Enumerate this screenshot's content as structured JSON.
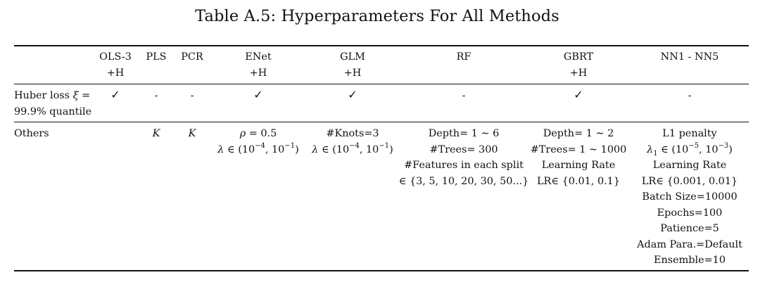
{
  "caption": "Table A.5: Hyperparameters For All Methods",
  "columns": [
    {
      "key": "ols",
      "line1": "OLS-3",
      "line2": "+H"
    },
    {
      "key": "pls",
      "line1": "PLS",
      "line2": ""
    },
    {
      "key": "pcr",
      "line1": "PCR",
      "line2": ""
    },
    {
      "key": "enet",
      "line1": "ENet",
      "line2": "+H"
    },
    {
      "key": "glm",
      "line1": "GLM",
      "line2": "+H"
    },
    {
      "key": "rf",
      "line1": "RF",
      "line2": ""
    },
    {
      "key": "gbrt",
      "line1": "GBRT",
      "line2": "+H"
    },
    {
      "key": "nn",
      "line1": "NN1 - NN5",
      "line2": ""
    }
  ],
  "rows": {
    "huber": {
      "label_line1_prefix": "Huber loss ",
      "label_line1_symbol": "ξ",
      "label_line1_suffix": " =",
      "label_line2": "99.9% quantile",
      "cells": {
        "ols": "✓",
        "pls": "-",
        "pcr": "-",
        "enet": "✓",
        "glm": "✓",
        "rf": "-",
        "gbrt": "✓",
        "nn": "-"
      }
    },
    "others": {
      "label": "Others",
      "pls": "K",
      "pcr": "K",
      "enet": {
        "rho_symbol": "ρ",
        "rho_rest": " = 0.5",
        "lambda_symbol": "λ",
        "lambda_in": " ∈ (10",
        "lambda_exp1": "−4",
        "lambda_mid": ", 10",
        "lambda_exp2": "−1",
        "lambda_close": ")"
      },
      "glm": {
        "knots": "#Knots=3",
        "lambda_symbol": "λ",
        "lambda_in": " ∈ (10",
        "lambda_exp1": "−4",
        "lambda_mid": ", 10",
        "lambda_exp2": "−1",
        "lambda_close": ")"
      },
      "rf": {
        "depth_prefix": "Depth= 1 ",
        "depth_sym": "∼",
        "depth_suffix": " 6",
        "trees": "#Trees= 300",
        "features": "#Features in each split",
        "features_set": "∈ {3, 5, 10, 20, 30, 50...}"
      },
      "gbrt": {
        "depth_prefix": "Depth= 1 ",
        "depth_sym": "∼",
        "depth_suffix": " 2",
        "trees_prefix": "#Trees= 1 ",
        "trees_sym": "∼",
        "trees_suffix": " 1000",
        "lr_title": "Learning Rate",
        "lr_set": "LR∈ {0.01, 0.1}"
      },
      "nn": {
        "l1": "L1 penalty",
        "lambda_symbol": "λ",
        "lambda_sub": "1",
        "lambda_in": " ∈ (10",
        "lambda_exp1": "−5",
        "lambda_mid": ", 10",
        "lambda_exp2": "−3",
        "lambda_close": ")",
        "lr_title": "Learning Rate",
        "lr_set": "LR∈ {0.001, 0.01}",
        "batch": "Batch Size=10000",
        "epochs": "Epochs=100",
        "patience": "Patience=5",
        "adam": "Adam Para.=Default",
        "ensemble": "Ensemble=10"
      }
    }
  }
}
